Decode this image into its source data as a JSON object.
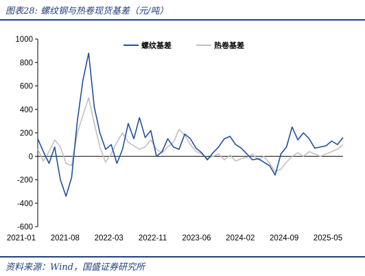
{
  "figure_title": "图表28:  螺纹钢与热卷现货基差（元/吨）",
  "source": "资料来源：Wind，国盛证券研究所",
  "colors": {
    "accent": "#1f3f7a",
    "rebar": "#1f4e9c",
    "hrc": "#bfbfbf"
  },
  "chart_data": {
    "type": "line",
    "title": "螺纹钢与热卷现货基差（元/吨）",
    "xlabel": "",
    "ylabel": "",
    "ylim": [
      -600,
      1000
    ],
    "yticks": [
      1000,
      800,
      600,
      400,
      200,
      0,
      -200,
      -400,
      -600
    ],
    "xticks": [
      "2021-01",
      "2021-08",
      "2022-03",
      "2022-11",
      "2023-06",
      "2024-02",
      "2024-09",
      "2025-05"
    ],
    "xlim": [
      "2021-01",
      "2025-07"
    ],
    "grid": false,
    "legend_position": "top",
    "series": [
      {
        "name": "螺纹基差",
        "color": "#1f4e9c",
        "points": [
          [
            "2021-01",
            150
          ],
          [
            "2021-02",
            40
          ],
          [
            "2021-03",
            -60
          ],
          [
            "2021-04",
            80
          ],
          [
            "2021-05",
            -200
          ],
          [
            "2021-06",
            -340
          ],
          [
            "2021-07",
            -180
          ],
          [
            "2021-08",
            300
          ],
          [
            "2021-09",
            650
          ],
          [
            "2021-10",
            880
          ],
          [
            "2021-11",
            420
          ],
          [
            "2021-12",
            200
          ],
          [
            "2022-01",
            60
          ],
          [
            "2022-02",
            100
          ],
          [
            "2022-03",
            -60
          ],
          [
            "2022-04",
            60
          ],
          [
            "2022-05",
            280
          ],
          [
            "2022-06",
            150
          ],
          [
            "2022-07",
            330
          ],
          [
            "2022-08",
            160
          ],
          [
            "2022-09",
            220
          ],
          [
            "2022-10",
            0
          ],
          [
            "2022-11",
            40
          ],
          [
            "2022-12",
            150
          ],
          [
            "2023-01",
            80
          ],
          [
            "2023-02",
            60
          ],
          [
            "2023-03",
            190
          ],
          [
            "2023-04",
            150
          ],
          [
            "2023-05",
            70
          ],
          [
            "2023-06",
            30
          ],
          [
            "2023-07",
            -30
          ],
          [
            "2023-08",
            30
          ],
          [
            "2023-09",
            80
          ],
          [
            "2023-10",
            150
          ],
          [
            "2023-11",
            170
          ],
          [
            "2023-12",
            100
          ],
          [
            "2024-01",
            70
          ],
          [
            "2024-02",
            20
          ],
          [
            "2024-03",
            -30
          ],
          [
            "2024-04",
            -20
          ],
          [
            "2024-05",
            -50
          ],
          [
            "2024-06",
            -80
          ],
          [
            "2024-07",
            -160
          ],
          [
            "2024-08",
            20
          ],
          [
            "2024-09",
            80
          ],
          [
            "2024-10",
            250
          ],
          [
            "2024-11",
            140
          ],
          [
            "2024-12",
            200
          ],
          [
            "2025-01",
            150
          ],
          [
            "2025-02",
            70
          ],
          [
            "2025-03",
            80
          ],
          [
            "2025-04",
            90
          ],
          [
            "2025-05",
            130
          ],
          [
            "2025-06",
            100
          ],
          [
            "2025-07",
            160
          ]
        ]
      },
      {
        "name": "热卷基差",
        "color": "#bfbfbf",
        "points": [
          [
            "2021-01",
            60
          ],
          [
            "2021-02",
            -40
          ],
          [
            "2021-03",
            40
          ],
          [
            "2021-04",
            140
          ],
          [
            "2021-05",
            80
          ],
          [
            "2021-06",
            -60
          ],
          [
            "2021-07",
            -80
          ],
          [
            "2021-08",
            200
          ],
          [
            "2021-09",
            350
          ],
          [
            "2021-10",
            500
          ],
          [
            "2021-11",
            280
          ],
          [
            "2021-12",
            80
          ],
          [
            "2022-01",
            -50
          ],
          [
            "2022-02",
            20
          ],
          [
            "2022-03",
            120
          ],
          [
            "2022-04",
            200
          ],
          [
            "2022-05",
            120
          ],
          [
            "2022-06",
            90
          ],
          [
            "2022-07",
            60
          ],
          [
            "2022-08",
            80
          ],
          [
            "2022-09",
            140
          ],
          [
            "2022-10",
            60
          ],
          [
            "2022-11",
            30
          ],
          [
            "2022-12",
            80
          ],
          [
            "2023-01",
            120
          ],
          [
            "2023-02",
            230
          ],
          [
            "2023-03",
            180
          ],
          [
            "2023-04",
            100
          ],
          [
            "2023-05",
            40
          ],
          [
            "2023-06",
            20
          ],
          [
            "2023-07",
            -20
          ],
          [
            "2023-08",
            0
          ],
          [
            "2023-09",
            20
          ],
          [
            "2023-10",
            -30
          ],
          [
            "2023-11",
            10
          ],
          [
            "2023-12",
            -40
          ],
          [
            "2024-01",
            -20
          ],
          [
            "2024-02",
            -10
          ],
          [
            "2024-03",
            20
          ],
          [
            "2024-04",
            -30
          ],
          [
            "2024-05",
            0
          ],
          [
            "2024-06",
            -60
          ],
          [
            "2024-07",
            -130
          ],
          [
            "2024-08",
            -110
          ],
          [
            "2024-09",
            -50
          ],
          [
            "2024-10",
            0
          ],
          [
            "2024-11",
            30
          ],
          [
            "2024-12",
            0
          ],
          [
            "2025-01",
            40
          ],
          [
            "2025-02",
            20
          ],
          [
            "2025-03",
            0
          ],
          [
            "2025-04",
            20
          ],
          [
            "2025-05",
            40
          ],
          [
            "2025-06",
            60
          ],
          [
            "2025-07",
            100
          ]
        ]
      }
    ]
  }
}
